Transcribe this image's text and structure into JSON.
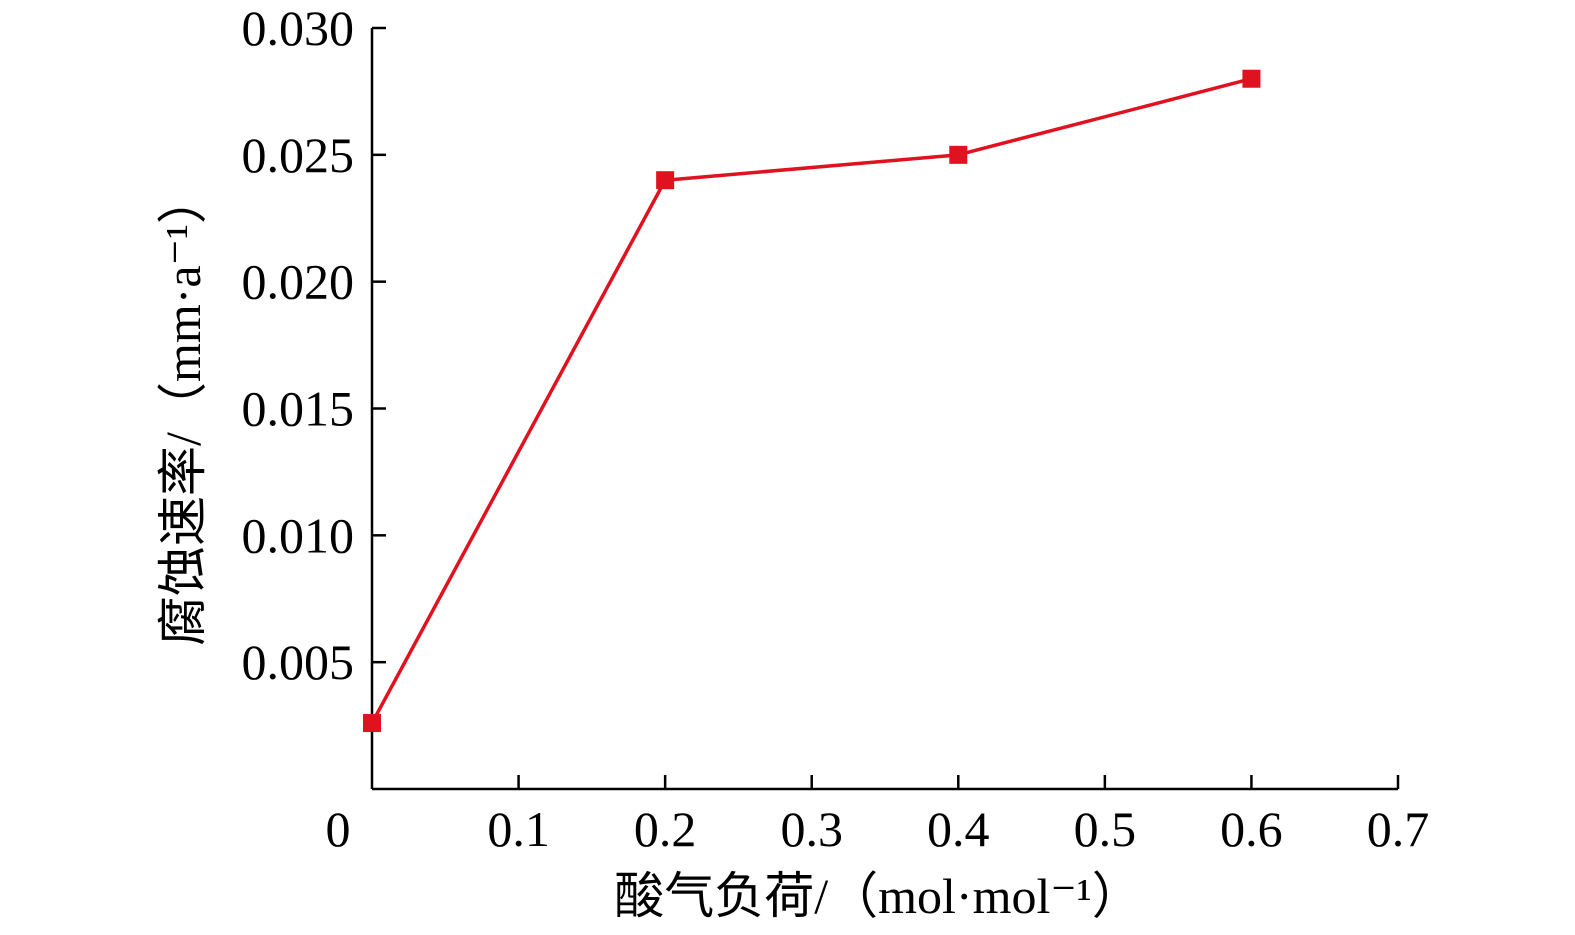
{
  "chart_data": {
    "type": "line",
    "xlabel": "酸气负荷/（mol·mol⁻¹）",
    "ylabel": "腐蚀速率/（mm·a⁻¹）",
    "xlim": [
      0,
      0.7
    ],
    "ylim": [
      0,
      0.03
    ],
    "xticks": [
      "0",
      "0.1",
      "0.2",
      "0.3",
      "0.4",
      "0.5",
      "0.6",
      "0.7"
    ],
    "yticks": [
      "0.005",
      "0.010",
      "0.015",
      "0.020",
      "0.025",
      "0.030"
    ],
    "grid": false,
    "series": [
      {
        "marker": "square",
        "color": "#e0121f",
        "x": [
          0,
          0.2,
          0.4,
          0.6
        ],
        "y": [
          0.0026,
          0.024,
          0.025,
          0.028
        ]
      }
    ]
  }
}
